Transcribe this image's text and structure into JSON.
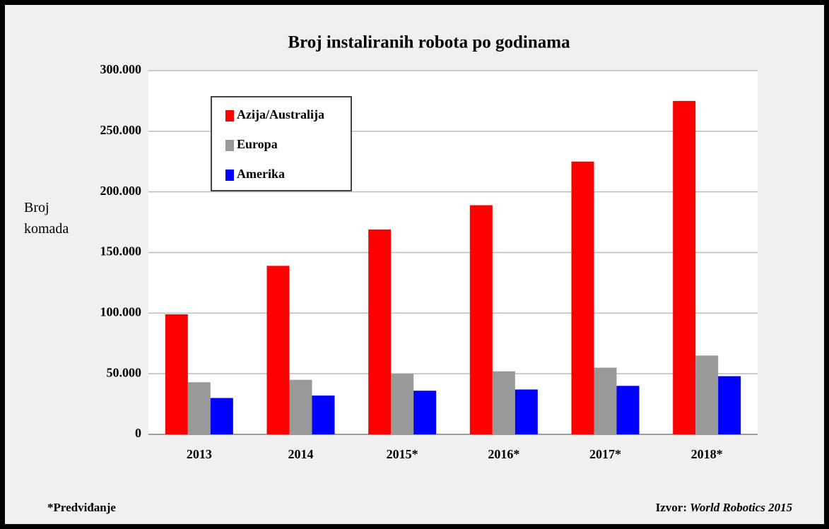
{
  "chart_data": {
    "type": "bar",
    "title": "Broj instaliranih robota po godinama",
    "y_label": "Broj komada",
    "categories": [
      "2013",
      "2014",
      "2015*",
      "2016*",
      "2017*",
      "2018*"
    ],
    "series": [
      {
        "name": "Azija/Australija",
        "color": "#ff0000",
        "values": [
          99000,
          139000,
          169000,
          189000,
          225000,
          275000
        ]
      },
      {
        "name": "Europa",
        "color": "#999999",
        "values": [
          43000,
          45000,
          50000,
          52000,
          55000,
          65000
        ]
      },
      {
        "name": "Amerika",
        "color": "#0000ff",
        "values": [
          30000,
          32000,
          36000,
          37000,
          40000,
          48000
        ]
      }
    ],
    "ylim": [
      0,
      300000
    ],
    "yticks": [
      0,
      {
        "value": 50000,
        "label": "50.000"
      },
      {
        "value": 100000,
        "label": "100.000"
      },
      {
        "value": 150000,
        "label": "150.000"
      },
      {
        "value": 200000,
        "label": "200.000"
      },
      {
        "value": 250000,
        "label": "250.000"
      },
      {
        "value": 300000,
        "label": "300.000"
      }
    ],
    "grid": true,
    "legend_position": "upper left",
    "footnote": "*Predviđanje",
    "source_label": "Izvor:",
    "source": "World Robotics 2015"
  }
}
